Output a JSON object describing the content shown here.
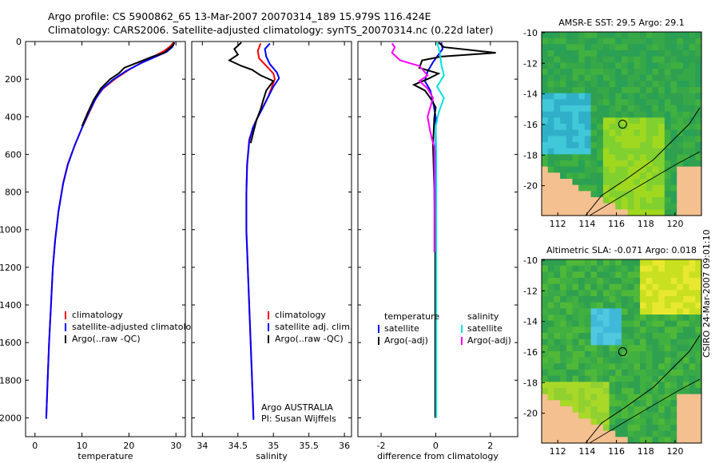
{
  "title": {
    "line1": "Argo profile: CS 5900862_65 13-Mar-2007 20070314_189 15.979S 116.424E",
    "line2": "Climatology: CARS2006. Satellite-adjusted climatology: synTS_20070314.nc (0.22d later)"
  },
  "credit": "CSIRO 24-Mar-2007 09:01:10",
  "chart_data": [
    {
      "id": "temperature",
      "type": "line",
      "xlabel": "temperature",
      "ylabel": "",
      "xlim": [
        -2,
        32
      ],
      "ylim": [
        2100,
        0
      ],
      "xticks": [
        "0",
        "10",
        "20",
        "30"
      ],
      "yticks": [
        "0",
        "200",
        "400",
        "600",
        "800",
        "1000",
        "1200",
        "1400",
        "1600",
        "1800",
        "2000"
      ],
      "legend": [
        "climatology",
        "satellite-adjusted climatology",
        "Argo(..raw -QC)"
      ],
      "legend_position": "bottom-right",
      "series": [
        {
          "name": "climatology",
          "color": "#ff0000",
          "points": [
            [
              29.5,
              5
            ],
            [
              28.8,
              25
            ],
            [
              27.5,
              50
            ],
            [
              26,
              70
            ],
            [
              23.5,
              100
            ],
            [
              20,
              150
            ],
            [
              17,
              200
            ],
            [
              14.5,
              250
            ],
            [
              13,
              300
            ],
            [
              11.5,
              380
            ],
            [
              10,
              460
            ],
            [
              8.5,
              550
            ],
            [
              7,
              650
            ],
            [
              6,
              750
            ],
            [
              5,
              900
            ],
            [
              4.3,
              1050
            ],
            [
              3.8,
              1200
            ],
            [
              3.4,
              1400
            ],
            [
              3,
              1600
            ],
            [
              2.7,
              1800
            ],
            [
              2.4,
              2000
            ]
          ]
        },
        {
          "name": "satellite-adjusted climatology",
          "color": "#0000ff",
          "points": [
            [
              29.7,
              5
            ],
            [
              29.2,
              30
            ],
            [
              28,
              55
            ],
            [
              26.2,
              75
            ],
            [
              23,
              110
            ],
            [
              19.5,
              155
            ],
            [
              16.5,
              205
            ],
            [
              14.2,
              255
            ],
            [
              12.8,
              310
            ],
            [
              11.3,
              385
            ],
            [
              9.9,
              465
            ],
            [
              8.4,
              555
            ],
            [
              7,
              655
            ],
            [
              6,
              755
            ],
            [
              5,
              905
            ],
            [
              4.3,
              1055
            ],
            [
              3.8,
              1205
            ],
            [
              3.4,
              1405
            ],
            [
              3,
              1605
            ],
            [
              2.7,
              1805
            ],
            [
              2.4,
              2005
            ]
          ]
        },
        {
          "name": "Argo(..raw -QC)",
          "color": "#000000",
          "points": [
            [
              29.6,
              5
            ],
            [
              29.4,
              20
            ],
            [
              27.5,
              60
            ],
            [
              25,
              80
            ],
            [
              22,
              110
            ],
            [
              19,
              140
            ],
            [
              17.8,
              170
            ],
            [
              16,
              200
            ],
            [
              14,
              250
            ],
            [
              12.5,
              310
            ],
            [
              11.2,
              380
            ],
            [
              10,
              450
            ]
          ]
        }
      ]
    },
    {
      "id": "salinity",
      "type": "line",
      "xlabel": "salinity",
      "ylabel": "",
      "xlim": [
        33.85,
        36.1
      ],
      "ylim": [
        2100,
        0
      ],
      "xticks": [
        "34",
        "34.5",
        "35",
        "35.5",
        "36"
      ],
      "yticks": [],
      "legend": [
        "climatology",
        "satellite adj. clim.",
        "Argo(..raw -QC)"
      ],
      "legend_position": "bottom-right",
      "annotation": [
        "Argo AUSTRALIA",
        "PI: Susan Wijffels"
      ],
      "series": [
        {
          "name": "climatology",
          "color": "#ff0000",
          "points": [
            [
              34.82,
              10
            ],
            [
              34.78,
              50
            ],
            [
              34.8,
              90
            ],
            [
              34.9,
              130
            ],
            [
              35.0,
              170
            ],
            [
              35.02,
              200
            ],
            [
              34.98,
              240
            ],
            [
              34.93,
              290
            ],
            [
              34.85,
              350
            ],
            [
              34.78,
              400
            ],
            [
              34.72,
              450
            ],
            [
              34.66,
              520
            ],
            [
              34.63,
              650
            ],
            [
              34.62,
              800
            ],
            [
              34.62,
              1000
            ],
            [
              34.64,
              1200
            ],
            [
              34.66,
              1400
            ],
            [
              34.68,
              1600
            ],
            [
              34.7,
              1800
            ],
            [
              34.72,
              2000
            ]
          ]
        },
        {
          "name": "satellite adj. clim.",
          "color": "#0000ff",
          "points": [
            [
              34.95,
              10
            ],
            [
              34.88,
              40
            ],
            [
              34.9,
              80
            ],
            [
              34.95,
              120
            ],
            [
              35.05,
              165
            ],
            [
              35.08,
              195
            ],
            [
              35.0,
              240
            ],
            [
              34.92,
              300
            ],
            [
              34.84,
              360
            ],
            [
              34.77,
              410
            ],
            [
              34.71,
              460
            ],
            [
              34.66,
              530
            ],
            [
              34.63,
              660
            ],
            [
              34.62,
              810
            ],
            [
              34.62,
              1010
            ],
            [
              34.64,
              1210
            ],
            [
              34.66,
              1410
            ],
            [
              34.68,
              1610
            ],
            [
              34.7,
              1810
            ],
            [
              34.72,
              2010
            ]
          ]
        },
        {
          "name": "Argo(..raw -QC)",
          "color": "#000000",
          "points": [
            [
              34.55,
              5
            ],
            [
              34.45,
              40
            ],
            [
              34.5,
              70
            ],
            [
              34.38,
              100
            ],
            [
              34.55,
              130
            ],
            [
              34.7,
              150
            ],
            [
              34.82,
              180
            ],
            [
              35.0,
              210
            ],
            [
              34.9,
              260
            ],
            [
              34.85,
              320
            ],
            [
              34.82,
              360
            ],
            [
              34.76,
              420
            ],
            [
              34.72,
              480
            ],
            [
              34.68,
              540
            ]
          ]
        }
      ]
    },
    {
      "id": "difference",
      "type": "line",
      "xlabel": "difference from climatology",
      "ylabel": "",
      "xlim": [
        -2.85,
        3.0
      ],
      "ylim": [
        2100,
        0
      ],
      "xticks": [
        "-2",
        "0",
        "2"
      ],
      "yticks": [],
      "legend": [
        "temperature",
        "satellite",
        "Argo(-adj)",
        "salinity",
        "satellite",
        "Argo(-adj)"
      ],
      "legend_position": "bottom",
      "series": [
        {
          "name": "temperature satellite",
          "color": "#0000ff",
          "points": [
            [
              0.2,
              5
            ],
            [
              0.25,
              40
            ],
            [
              0.1,
              70
            ],
            [
              -0.1,
              110
            ],
            [
              -0.3,
              160
            ],
            [
              -0.4,
              210
            ],
            [
              -0.2,
              260
            ],
            [
              -0.1,
              320
            ],
            [
              0,
              400
            ],
            [
              0,
              600
            ],
            [
              0,
              900
            ],
            [
              0,
              1200
            ],
            [
              0,
              1600
            ],
            [
              0,
              2000
            ]
          ]
        },
        {
          "name": "temperature Argo(-adj)",
          "color": "#000000",
          "points": [
            [
              0.1,
              5
            ],
            [
              0.3,
              30
            ],
            [
              2.2,
              60
            ],
            [
              0.2,
              80
            ],
            [
              -0.5,
              100
            ],
            [
              -0.6,
              140
            ],
            [
              0.1,
              170
            ],
            [
              -0.3,
              200
            ],
            [
              -0.8,
              230
            ],
            [
              -0.4,
              260
            ],
            [
              -0.2,
              300
            ],
            [
              0,
              350
            ],
            [
              -0.05,
              400
            ],
            [
              -0.1,
              550
            ],
            [
              -0.05,
              800
            ],
            [
              -0.02,
              1100
            ],
            [
              -0.02,
              1400
            ],
            [
              -0.02,
              1700
            ],
            [
              -0.02,
              2000
            ]
          ]
        },
        {
          "name": "salinity satellite",
          "color": "#00e0e0",
          "points": [
            [
              0.05,
              5
            ],
            [
              0.15,
              60
            ],
            [
              0.2,
              120
            ],
            [
              0.3,
              180
            ],
            [
              0.05,
              240
            ],
            [
              0.3,
              300
            ],
            [
              0.1,
              380
            ],
            [
              0,
              450
            ],
            [
              0.02,
              600
            ],
            [
              0.02,
              800
            ],
            [
              0.02,
              1000
            ],
            [
              0.02,
              1300
            ],
            [
              0.02,
              1600
            ],
            [
              0.02,
              2000
            ]
          ]
        },
        {
          "name": "salinity Argo(-adj)",
          "color": "#ff00ff",
          "points": [
            [
              -1.6,
              10
            ],
            [
              -1.5,
              30
            ],
            [
              -1.6,
              60
            ],
            [
              -1.3,
              100
            ],
            [
              -0.6,
              130
            ],
            [
              -0.3,
              180
            ],
            [
              -0.6,
              210
            ],
            [
              -0.3,
              250
            ],
            [
              -0.1,
              300
            ],
            [
              -0.3,
              400
            ],
            [
              -0.2,
              480
            ],
            [
              -0.1,
              540
            ],
            [
              -0.05,
              560
            ],
            [
              -0.05,
              1000
            ],
            [
              -0.05,
              1120
            ]
          ]
        }
      ]
    },
    {
      "id": "sst_map",
      "type": "heatmap",
      "title": "AMSR-E SST: 29.5 Argo: 29.1",
      "xticks": [
        "112",
        "114",
        "116",
        "118",
        "120"
      ],
      "yticks": [
        "-10",
        "-12",
        "-14",
        "-16",
        "-18",
        "-20"
      ],
      "xlim": [
        110.9,
        121.8
      ],
      "ylim": [
        -21.95,
        -9.95
      ],
      "argo_position": [
        116.424,
        -15.979
      ]
    },
    {
      "id": "sla_map",
      "type": "heatmap",
      "title": "Altimetric SLA: -0.071 Argo: 0.018",
      "xticks": [
        "112",
        "114",
        "116",
        "118",
        "120"
      ],
      "yticks": [
        "-10",
        "-12",
        "-14",
        "-16",
        "-18",
        "-20"
      ],
      "xlim": [
        110.9,
        121.8
      ],
      "ylim": [
        -21.95,
        -9.95
      ],
      "argo_position": [
        116.424,
        -15.979
      ]
    }
  ]
}
